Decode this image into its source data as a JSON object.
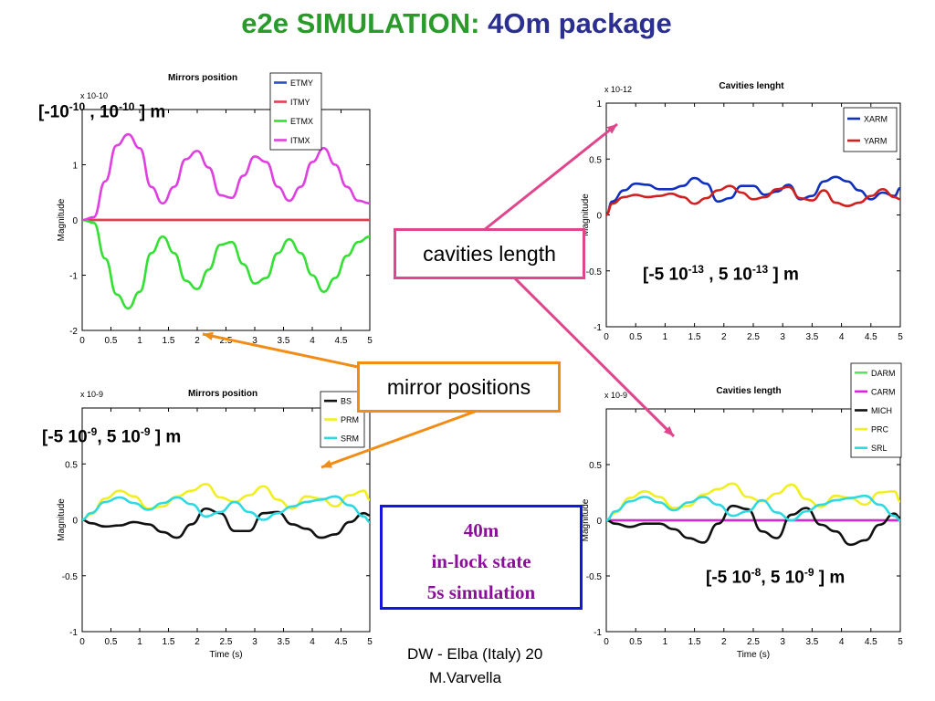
{
  "title": {
    "part1": "e2e SIMULATION:",
    "part2": "4Om package"
  },
  "colors": {
    "title_green": "#2a9a2a",
    "title_blue": "#2b2f8f",
    "callout_pink": "#e0468c",
    "callout_orange": "#f28c14",
    "info_blue": "#1515e0",
    "info_text": "#8b0f9a"
  },
  "callouts": {
    "cavities": "cavities length",
    "mirrors": "mirror positions",
    "info": [
      "40m",
      "in-lock state",
      "5s simulation"
    ]
  },
  "ranges": {
    "r1": {
      "a": "[-10",
      "ae": "-10",
      "b": " , 10",
      "be": "-10",
      "c": " ] m"
    },
    "r2": {
      "a": "[-5 10",
      "ae": "-13",
      "b": " , 5 10",
      "be": "-13",
      "c": " ] m"
    },
    "r3": {
      "a": "[-5 10",
      "ae": "-9",
      "b": ", 5 10",
      "be": "-9",
      "c": " ] m"
    },
    "r4": {
      "a": "[-5 10",
      "ae": "-8",
      "b": ", 5 10",
      "be": "-9",
      "c": " ] m"
    }
  },
  "footer": {
    "line1": "DW - Elba (Italy) 20",
    "line2": "M.Varvella"
  },
  "chart_data": [
    {
      "type": "line",
      "title": "Mirrors position",
      "ylabel": "Magnitude",
      "xlabel": "",
      "exponent": "x 10^-10",
      "xlim": [
        0,
        5
      ],
      "ylim": [
        -2,
        2
      ],
      "xticks": [
        "0",
        "0.5",
        "1",
        "1.5",
        "2",
        "2.5",
        "3",
        "3.5",
        "4",
        "4.5",
        "5"
      ],
      "yticks": [
        "-2",
        "-1",
        "0",
        "1"
      ],
      "legend_position": "top-right",
      "x": [
        0,
        0.2,
        0.4,
        0.6,
        0.8,
        1.0,
        1.2,
        1.4,
        1.6,
        1.8,
        2.0,
        2.2,
        2.4,
        2.6,
        2.8,
        3.0,
        3.2,
        3.4,
        3.6,
        3.8,
        4.0,
        4.2,
        4.4,
        4.6,
        4.8,
        5.0
      ],
      "series": [
        {
          "name": "ETMY",
          "color": "#3050c0",
          "values": [
            0,
            0,
            0,
            0,
            0,
            0,
            0,
            0,
            0,
            0,
            0,
            0,
            0,
            0,
            0,
            0,
            0,
            0,
            0,
            0,
            0,
            0,
            0,
            0,
            0,
            0
          ]
        },
        {
          "name": "ITMY",
          "color": "#e04050",
          "values": [
            0,
            0,
            0,
            0,
            0,
            0,
            0,
            0,
            0,
            0,
            0,
            0,
            0,
            0,
            0,
            0,
            0,
            0,
            0,
            0,
            0,
            0,
            0,
            0,
            0,
            0
          ]
        },
        {
          "name": "ETMX",
          "color": "#33e033",
          "values": [
            0,
            -0.05,
            -0.7,
            -1.35,
            -1.6,
            -1.3,
            -0.6,
            -0.3,
            -0.6,
            -1.1,
            -1.25,
            -0.9,
            -0.45,
            -0.4,
            -0.8,
            -1.15,
            -1.05,
            -0.6,
            -0.35,
            -0.6,
            -1.0,
            -1.3,
            -1.05,
            -0.65,
            -0.4,
            -0.3
          ]
        },
        {
          "name": "ITMX",
          "color": "#e040e0",
          "values": [
            0,
            0.05,
            0.7,
            1.35,
            1.55,
            1.3,
            0.6,
            0.3,
            0.6,
            1.1,
            1.25,
            0.95,
            0.45,
            0.4,
            0.8,
            1.15,
            1.05,
            0.6,
            0.35,
            0.6,
            1.05,
            1.3,
            1.0,
            0.6,
            0.35,
            0.3
          ]
        }
      ]
    },
    {
      "type": "line",
      "title": "Cavities lenght",
      "ylabel": "Magnitude",
      "xlabel": "",
      "exponent": "x 10^-12",
      "xlim": [
        0,
        5
      ],
      "ylim": [
        -1,
        1
      ],
      "xticks": [
        "0",
        "0.5",
        "1",
        "1.5",
        "2",
        "2.5",
        "3",
        "3.5",
        "4",
        "4.5",
        "5"
      ],
      "yticks": [
        "-1",
        "-0.5",
        "0",
        "0.5",
        "1"
      ],
      "legend_position": "top-right",
      "x": [
        0,
        0.1,
        0.3,
        0.5,
        0.7,
        0.9,
        1.1,
        1.3,
        1.5,
        1.7,
        1.9,
        2.1,
        2.3,
        2.5,
        2.7,
        2.9,
        3.1,
        3.3,
        3.5,
        3.7,
        3.9,
        4.1,
        4.3,
        4.5,
        4.7,
        4.9,
        5.0
      ],
      "series": [
        {
          "name": "XARM",
          "color": "#1030c0",
          "values": [
            0,
            0.12,
            0.22,
            0.28,
            0.27,
            0.23,
            0.23,
            0.26,
            0.33,
            0.28,
            0.12,
            0.15,
            0.26,
            0.26,
            0.18,
            0.21,
            0.27,
            0.14,
            0.17,
            0.3,
            0.34,
            0.3,
            0.22,
            0.14,
            0.2,
            0.17,
            0.24
          ]
        },
        {
          "name": "YARM",
          "color": "#d02020",
          "values": [
            0,
            0.1,
            0.16,
            0.18,
            0.16,
            0.17,
            0.19,
            0.16,
            0.1,
            0.15,
            0.22,
            0.26,
            0.2,
            0.14,
            0.16,
            0.23,
            0.25,
            0.15,
            0.13,
            0.22,
            0.11,
            0.08,
            0.11,
            0.17,
            0.23,
            0.16,
            0.14
          ]
        }
      ]
    },
    {
      "type": "line",
      "title": "Mirrors position",
      "ylabel": "Magnitude",
      "xlabel": "Time (s)",
      "exponent": "x 10^-9",
      "xlim": [
        0,
        5
      ],
      "ylim": [
        -1,
        1
      ],
      "xticks": [
        "0",
        "0.5",
        "1",
        "1.5",
        "2",
        "2.5",
        "3",
        "3.5",
        "4",
        "4.5",
        "5"
      ],
      "yticks": [
        "-1",
        "-0.5",
        "0",
        "0.5"
      ],
      "legend_position": "top-right",
      "x": [
        0,
        0.15,
        0.4,
        0.65,
        0.9,
        1.15,
        1.4,
        1.65,
        1.9,
        2.15,
        2.4,
        2.65,
        2.9,
        3.15,
        3.4,
        3.65,
        3.9,
        4.15,
        4.4,
        4.65,
        4.9,
        5.0
      ],
      "series": [
        {
          "name": "BS",
          "color": "#111111",
          "values": [
            0,
            -0.03,
            -0.06,
            -0.05,
            -0.02,
            -0.04,
            -0.11,
            -0.16,
            -0.04,
            0.1,
            0.06,
            -0.1,
            -0.1,
            0.06,
            0.07,
            -0.04,
            -0.08,
            -0.16,
            -0.13,
            -0.02,
            0.06,
            0.04
          ]
        },
        {
          "name": "PRM",
          "color": "#f0f020",
          "values": [
            0,
            0.05,
            0.19,
            0.26,
            0.21,
            0.1,
            0.12,
            0.21,
            0.26,
            0.32,
            0.2,
            0.16,
            0.22,
            0.3,
            0.18,
            0.1,
            0.21,
            0.19,
            0.12,
            0.22,
            0.26,
            0.18
          ]
        },
        {
          "name": "SRM",
          "color": "#30d8e0",
          "values": [
            0,
            0.06,
            0.16,
            0.2,
            0.15,
            0.09,
            0.15,
            0.2,
            0.14,
            0.03,
            0.07,
            0.16,
            0.07,
            0.0,
            0.06,
            0.12,
            0.16,
            0.18,
            0.21,
            0.13,
            0.03,
            -0.02
          ]
        }
      ]
    },
    {
      "type": "line",
      "title": "Cavities length",
      "ylabel": "Magnitude",
      "xlabel": "Time (s)",
      "exponent": "x 10^-9",
      "xlim": [
        0,
        5
      ],
      "ylim": [
        -1,
        1
      ],
      "xticks": [
        "0",
        "0.5",
        "1",
        "1.5",
        "2",
        "2.5",
        "3",
        "3.5",
        "4",
        "4.5",
        "5"
      ],
      "yticks": [
        "-1",
        "-0.5",
        "0",
        "0.5"
      ],
      "legend_position": "top-right",
      "x": [
        0,
        0.15,
        0.4,
        0.65,
        0.9,
        1.15,
        1.4,
        1.65,
        1.9,
        2.15,
        2.4,
        2.65,
        2.9,
        3.15,
        3.4,
        3.65,
        3.9,
        4.15,
        4.4,
        4.65,
        4.9,
        5.0
      ],
      "series": [
        {
          "name": "DARM",
          "color": "#60e060",
          "values": [
            0,
            0,
            0,
            0,
            0,
            0,
            0,
            0,
            0,
            0,
            0,
            0,
            0,
            0,
            0,
            0,
            0,
            0,
            0,
            0,
            0,
            0
          ]
        },
        {
          "name": "CARM",
          "color": "#e020e0",
          "values": [
            0,
            0,
            0,
            0,
            0,
            0,
            0,
            0,
            0,
            0,
            0,
            0,
            0,
            0,
            0,
            0,
            0,
            0,
            0,
            0,
            0,
            0
          ]
        },
        {
          "name": "MICH",
          "color": "#111111",
          "values": [
            0,
            -0.03,
            -0.06,
            -0.03,
            -0.03,
            -0.08,
            -0.16,
            -0.2,
            -0.03,
            0.13,
            0.1,
            -0.1,
            -0.16,
            0.05,
            0.11,
            -0.04,
            -0.1,
            -0.22,
            -0.18,
            -0.04,
            0.06,
            0.02
          ]
        },
        {
          "name": "PRC",
          "color": "#f0f020",
          "values": [
            0,
            0.07,
            0.2,
            0.26,
            0.21,
            0.11,
            0.13,
            0.23,
            0.28,
            0.33,
            0.21,
            0.17,
            0.24,
            0.32,
            0.19,
            0.12,
            0.22,
            0.2,
            0.14,
            0.25,
            0.26,
            0.17
          ]
        },
        {
          "name": "SRL",
          "color": "#30d8e0",
          "values": [
            0,
            0.08,
            0.17,
            0.21,
            0.16,
            0.09,
            0.16,
            0.21,
            0.14,
            0.04,
            0.08,
            0.18,
            0.07,
            0.0,
            0.08,
            0.14,
            0.18,
            0.2,
            0.22,
            0.14,
            0.04,
            0.0
          ]
        }
      ]
    }
  ]
}
